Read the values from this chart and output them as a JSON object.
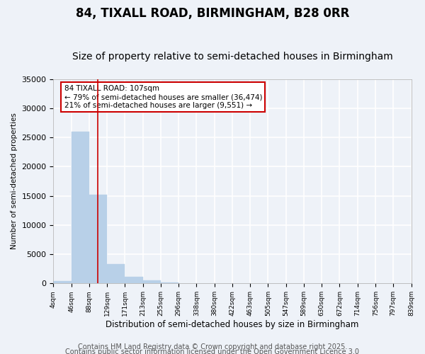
{
  "title": "84, TIXALL ROAD, BIRMINGHAM, B28 0RR",
  "subtitle": "Size of property relative to semi-detached houses in Birmingham",
  "xlabel": "Distribution of semi-detached houses by size in Birmingham",
  "ylabel": "Number of semi-detached properties",
  "bar_color": "#b8d0e8",
  "bar_edge_color": "#b8d0e8",
  "bar_values": [
    400,
    26000,
    15200,
    3300,
    1100,
    500,
    200,
    100,
    30,
    10,
    5,
    3,
    2,
    1,
    1,
    1,
    0,
    0,
    0,
    0
  ],
  "bin_edges": [
    4,
    46,
    88,
    129,
    171,
    213,
    255,
    296,
    338,
    380,
    422,
    463,
    505,
    547,
    589,
    630,
    672,
    714,
    756,
    797,
    839
  ],
  "x_tick_labels": [
    "4sqm",
    "46sqm",
    "88sqm",
    "129sqm",
    "171sqm",
    "213sqm",
    "255sqm",
    "296sqm",
    "338sqm",
    "380sqm",
    "422sqm",
    "463sqm",
    "505sqm",
    "547sqm",
    "589sqm",
    "630sqm",
    "672sqm",
    "714sqm",
    "756sqm",
    "797sqm",
    "839sqm"
  ],
  "ylim": [
    0,
    35000
  ],
  "yticks": [
    0,
    5000,
    10000,
    15000,
    20000,
    25000,
    30000,
    35000
  ],
  "property_size": 107,
  "red_line_color": "#cc0000",
  "annotation_line1": "84 TIXALL ROAD: 107sqm",
  "annotation_line2": "← 79% of semi-detached houses are smaller (36,474)",
  "annotation_line3": "21% of semi-detached houses are larger (9,551) →",
  "annotation_box_color": "#ffffff",
  "annotation_box_edge_color": "#cc0000",
  "footer_line1": "Contains HM Land Registry data © Crown copyright and database right 2025.",
  "footer_line2": "Contains public sector information licensed under the Open Government Licence 3.0",
  "background_color": "#eef2f8",
  "plot_background": "#eef2f8",
  "grid_color": "#ffffff",
  "title_fontsize": 12,
  "subtitle_fontsize": 10,
  "footer_fontsize": 7
}
